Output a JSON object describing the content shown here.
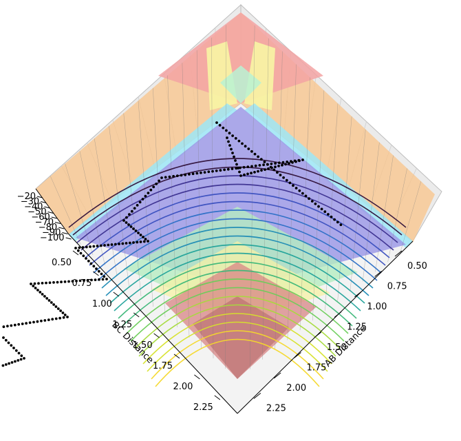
{
  "chart_data": {
    "type": "surface3d",
    "title": "",
    "xlabel": "AB Distance",
    "ylabel": "BC Distance",
    "zlabel": "",
    "x_ticks": [
      "0.50",
      "0.75",
      "1.00",
      "1.25",
      "1.50",
      "1.75",
      "2.00",
      "2.25"
    ],
    "y_ticks": [
      "0.50",
      "0.75",
      "1.00",
      "1.25",
      "1.50",
      "1.75",
      "2.00",
      "2.25"
    ],
    "z_ticks": [
      "−20",
      "−30",
      "−40",
      "−50",
      "−60",
      "−70",
      "−80",
      "−90",
      "−100"
    ],
    "surface_colormap": "jet",
    "contour_colormap": "viridis",
    "grid": true,
    "trajectory_color": "#000000",
    "surface_colors": [
      "#8e1a1a",
      "#f6a1a1",
      "#f9d6a0",
      "#f8f6a8",
      "#a7f0c9",
      "#9ad6ee",
      "#8f8ad8"
    ]
  }
}
